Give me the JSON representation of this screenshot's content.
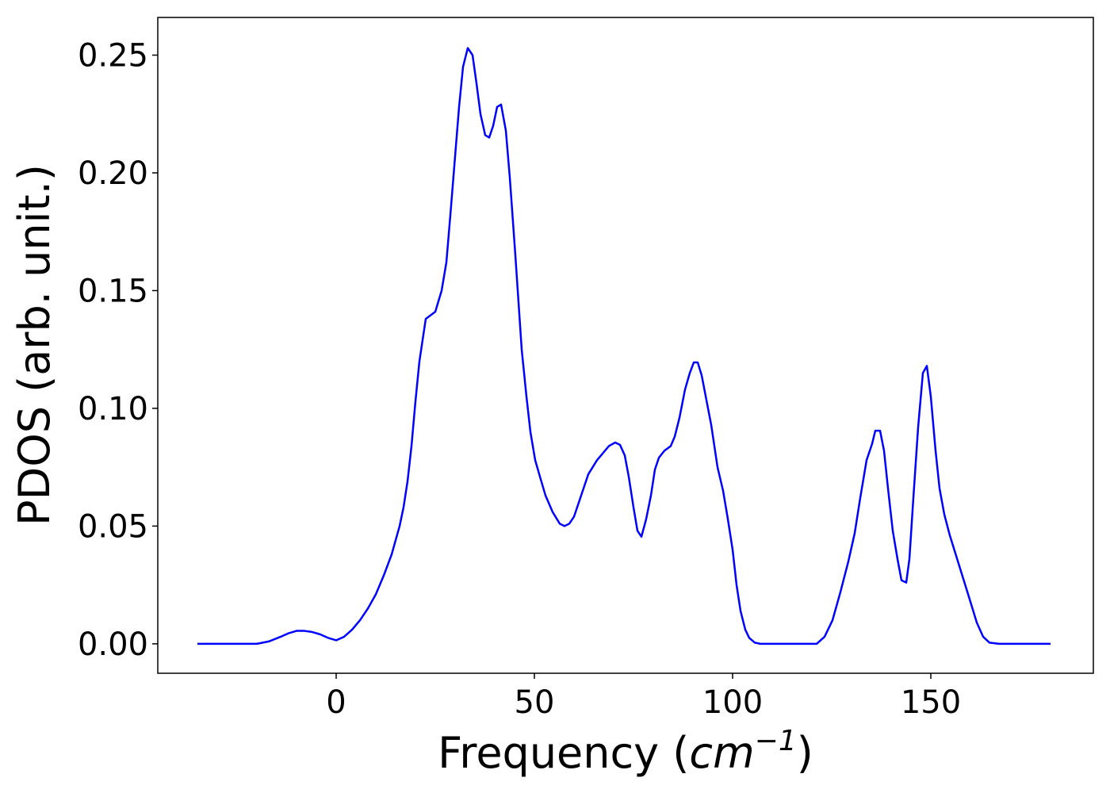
{
  "chart_data": {
    "type": "line",
    "xlabel": [
      "Frequency (",
      "cm",
      "−1",
      ")"
    ],
    "ylabel": "PDOS (arb. unit.)",
    "xlim": [
      -45,
      191
    ],
    "ylim": [
      -0.0125,
      0.266
    ],
    "xticks": [
      0,
      50,
      100,
      150
    ],
    "yticks": [
      {
        "value": 0,
        "label": "0.00"
      },
      {
        "value": 0.05,
        "label": "0.05"
      },
      {
        "value": 0.1,
        "label": "0.10"
      },
      {
        "value": 0.15,
        "label": "0.15"
      },
      {
        "value": 0.2,
        "label": "0.20"
      },
      {
        "value": 0.25,
        "label": "0.25"
      }
    ],
    "grid": false,
    "series": [
      {
        "color": "#0000ff",
        "x": [
          -35,
          -20,
          -17,
          -14,
          -12,
          -10,
          -8,
          -6,
          -4,
          -2,
          0,
          2,
          4,
          6,
          8,
          10,
          12,
          14,
          15,
          16,
          17,
          18,
          19,
          20,
          21,
          22.6,
          25,
          26.6,
          27.8,
          28.8,
          31,
          32,
          33.2,
          34.4,
          35.4,
          36.4,
          37.6,
          38.6,
          39.6,
          40.6,
          41.6,
          42.8,
          43.8,
          45.2,
          46.8,
          48,
          49,
          50.2,
          51.4,
          52.8,
          54.6,
          56.4,
          57.6,
          58.8,
          60,
          62.4,
          63.6,
          65.8,
          68.8,
          70.4,
          71.6,
          72.8,
          73.8,
          75,
          76,
          77,
          78.2,
          79.4,
          80.4,
          81.4,
          82.8,
          84.4,
          85.4,
          86.6,
          88,
          89.2,
          90.2,
          91.2,
          92.2,
          94.6,
          96.2,
          97.6,
          98.8,
          100,
          101,
          102,
          103.2,
          104.2,
          105.6,
          107,
          121.2,
          123.2,
          125.2,
          127.2,
          129.2,
          130.8,
          132.2,
          133.8,
          135.2,
          136,
          137.2,
          138.2,
          139.2,
          140.4,
          141.6,
          142.6,
          143.8,
          144.6,
          145.6,
          146.8,
          148,
          149,
          150,
          151.2,
          152.2,
          153.4,
          154.8,
          157.2,
          159.6,
          161.6,
          163.2,
          164.8,
          167.2,
          180.2
        ],
        "values": [
          0,
          0,
          0.001,
          0.003,
          0.0045,
          0.0055,
          0.0055,
          0.005,
          0.004,
          0.0025,
          0.0015,
          0.003,
          0.006,
          0.01,
          0.015,
          0.021,
          0.029,
          0.038,
          0.044,
          0.05,
          0.058,
          0.069,
          0.084,
          0.103,
          0.12,
          0.138,
          0.141,
          0.15,
          0.162,
          0.182,
          0.228,
          0.245,
          0.253,
          0.25,
          0.238,
          0.225,
          0.216,
          0.215,
          0.22,
          0.228,
          0.229,
          0.218,
          0.198,
          0.165,
          0.125,
          0.105,
          0.09,
          0.078,
          0.071,
          0.063,
          0.056,
          0.051,
          0.05,
          0.051,
          0.054,
          0.066,
          0.072,
          0.078,
          0.084,
          0.0855,
          0.0845,
          0.08,
          0.071,
          0.058,
          0.048,
          0.0455,
          0.053,
          0.063,
          0.074,
          0.079,
          0.082,
          0.084,
          0.088,
          0.096,
          0.108,
          0.115,
          0.1195,
          0.1195,
          0.114,
          0.093,
          0.075,
          0.065,
          0.053,
          0.04,
          0.025,
          0.014,
          0.006,
          0.0025,
          0.0005,
          0,
          0,
          0.003,
          0.01,
          0.022,
          0.035,
          0.047,
          0.062,
          0.078,
          0.085,
          0.0905,
          0.0905,
          0.082,
          0.066,
          0.048,
          0.036,
          0.027,
          0.026,
          0.036,
          0.062,
          0.092,
          0.115,
          0.118,
          0.105,
          0.082,
          0.066,
          0.055,
          0.046,
          0.033,
          0.02,
          0.009,
          0.003,
          0.0005,
          0,
          0
        ]
      }
    ]
  }
}
